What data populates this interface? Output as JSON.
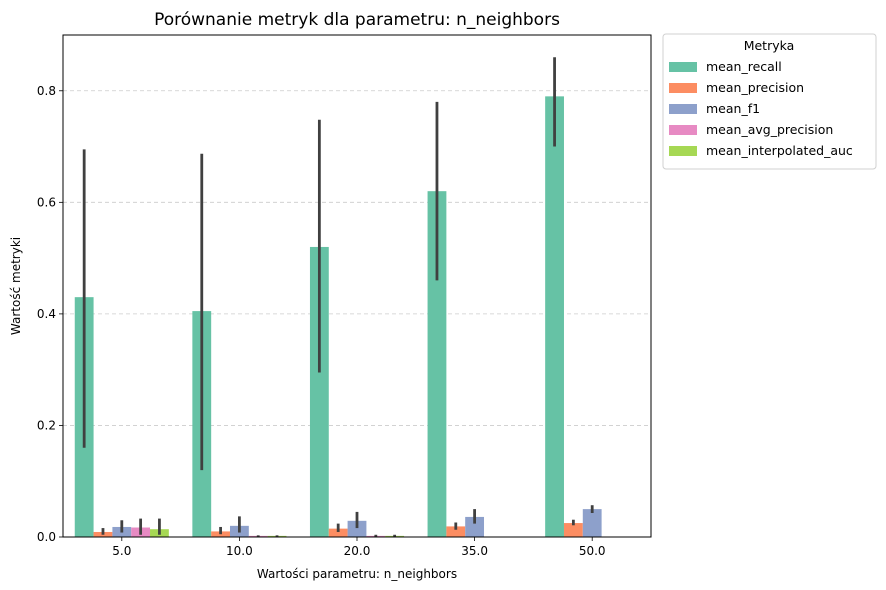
{
  "chart_data": {
    "type": "bar",
    "title": "Porównanie metryk dla parametru: n_neighbors",
    "xlabel": "Wartości parametru: n_neighbors",
    "ylabel": "Wartość metryki",
    "categories": [
      "5.0",
      "10.0",
      "20.0",
      "35.0",
      "50.0"
    ],
    "ylim": [
      0,
      0.9
    ],
    "yticks": [
      0.0,
      0.2,
      0.4,
      0.6,
      0.8
    ],
    "ytick_labels": [
      "0.0",
      "0.2",
      "0.4",
      "0.6",
      "0.8"
    ],
    "grid": "horizontal dashed",
    "legend": {
      "title": "Metryka",
      "placement": "outside top-right"
    },
    "series": [
      {
        "name": "mean_recall",
        "color": "#66c2a5",
        "values": [
          0.43,
          0.405,
          0.52,
          0.62,
          0.79
        ],
        "ci_low": [
          0.16,
          0.12,
          0.295,
          0.46,
          0.7
        ],
        "ci_high": [
          0.695,
          0.687,
          0.748,
          0.78,
          0.86
        ]
      },
      {
        "name": "mean_precision",
        "color": "#fc8d62",
        "values": [
          0.009,
          0.01,
          0.015,
          0.019,
          0.025
        ],
        "ci_low": [
          0.004,
          0.005,
          0.009,
          0.013,
          0.021
        ],
        "ci_high": [
          0.016,
          0.018,
          0.024,
          0.026,
          0.031
        ]
      },
      {
        "name": "mean_f1",
        "color": "#8da0cb",
        "values": [
          0.018,
          0.02,
          0.029,
          0.036,
          0.05
        ],
        "ci_low": [
          0.008,
          0.008,
          0.016,
          0.024,
          0.043
        ],
        "ci_high": [
          0.03,
          0.037,
          0.045,
          0.05,
          0.057
        ]
      },
      {
        "name": "mean_avg_precision",
        "color": "#e78ac3",
        "values": [
          0.017,
          0.002,
          0.002,
          null,
          null
        ],
        "ci_low": [
          0.004,
          0.0,
          0.0,
          null,
          null
        ],
        "ci_high": [
          0.033,
          0.003,
          0.004,
          null,
          null
        ]
      },
      {
        "name": "mean_interpolated_auc",
        "color": "#a6d854",
        "values": [
          0.014,
          0.002,
          0.002,
          null,
          null
        ],
        "ci_low": [
          0.004,
          0.0,
          0.0,
          null,
          null
        ],
        "ci_high": [
          0.033,
          0.003,
          0.004,
          null,
          null
        ]
      }
    ]
  }
}
